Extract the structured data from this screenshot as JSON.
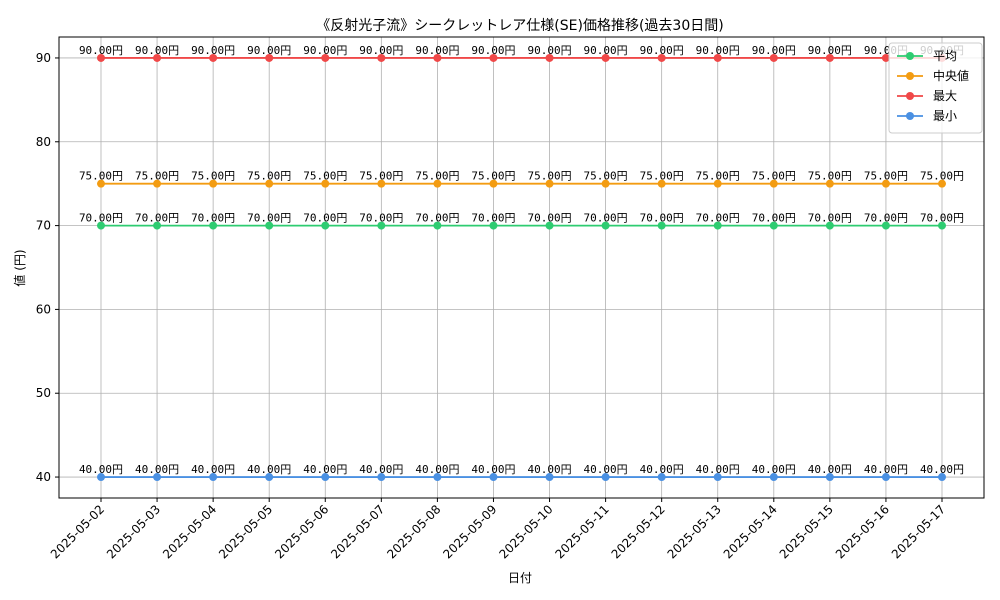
{
  "chart_data": {
    "type": "line",
    "title": "《反射光子流》シークレットレア仕様(SE)価格推移(過去30日間)",
    "xlabel": "日付",
    "ylabel": "値 (円)",
    "categories": [
      "2025-05-02",
      "2025-05-03",
      "2025-05-04",
      "2025-05-05",
      "2025-05-06",
      "2025-05-07",
      "2025-05-08",
      "2025-05-09",
      "2025-05-10",
      "2025-05-11",
      "2025-05-12",
      "2025-05-13",
      "2025-05-14",
      "2025-05-15",
      "2025-05-16",
      "2025-05-17"
    ],
    "ylim": [
      37.5,
      92.5
    ],
    "yticks": [
      40,
      50,
      60,
      70,
      80,
      90
    ],
    "grid": true,
    "legend_position": "top-right",
    "value_format_suffix": "円",
    "series": [
      {
        "name": "平均",
        "color": "#2ecc71",
        "values": [
          70,
          70,
          70,
          70,
          70,
          70,
          70,
          70,
          70,
          70,
          70,
          70,
          70,
          70,
          70,
          70
        ]
      },
      {
        "name": "中央値",
        "color": "#f39c12",
        "values": [
          75,
          75,
          75,
          75,
          75,
          75,
          75,
          75,
          75,
          75,
          75,
          75,
          75,
          75,
          75,
          75
        ]
      },
      {
        "name": "最大",
        "color": "#f04848",
        "values": [
          90,
          90,
          90,
          90,
          90,
          90,
          90,
          90,
          90,
          90,
          90,
          90,
          90,
          90,
          90,
          90
        ]
      },
      {
        "name": "最小",
        "color": "#4a90e2",
        "values": [
          40,
          40,
          40,
          40,
          40,
          40,
          40,
          40,
          40,
          40,
          40,
          40,
          40,
          40,
          40,
          40
        ]
      }
    ]
  }
}
